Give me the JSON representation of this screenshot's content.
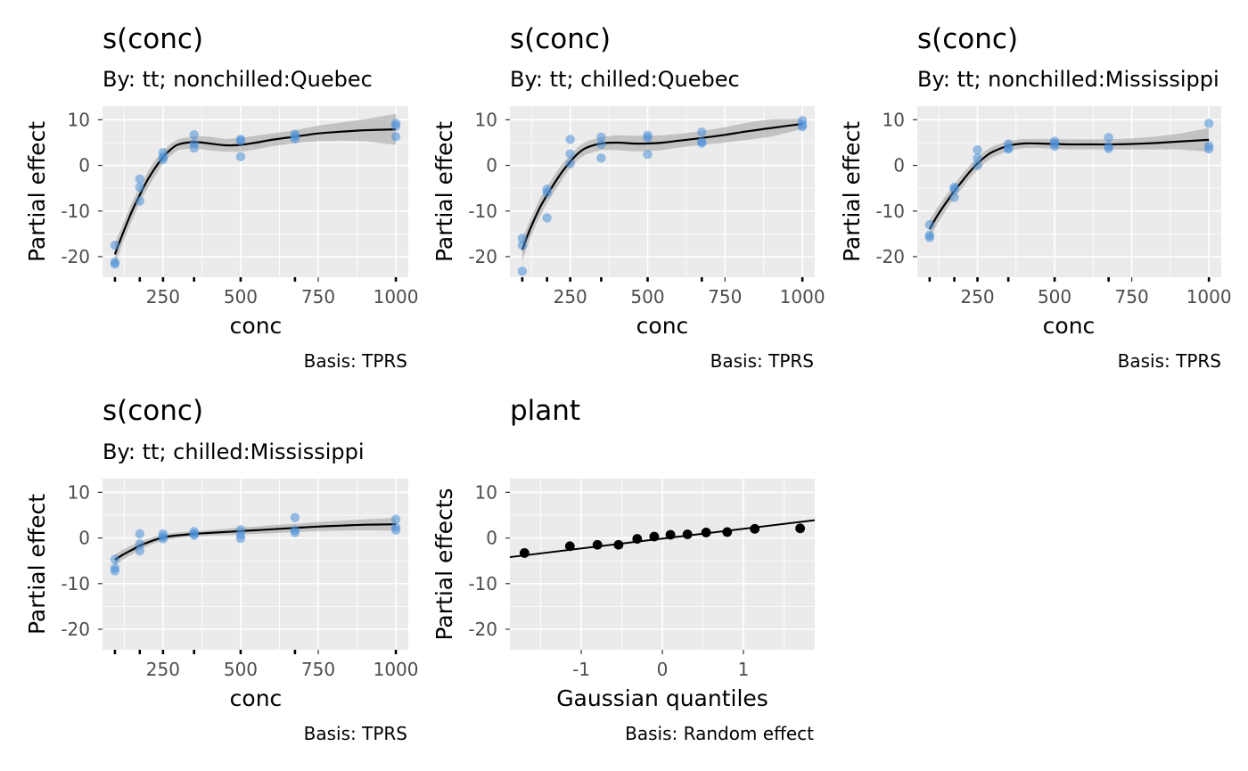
{
  "chart_data": [
    {
      "type": "line",
      "title": "s(conc)",
      "subtitle": "By: tt; nonchilled:Quebec",
      "caption": "Basis: TPRS",
      "xlabel": "conc",
      "ylabel": "Partial effect",
      "xlim": [
        55,
        1040
      ],
      "ylim": [
        -24.5,
        13
      ],
      "xticks": [
        250,
        500,
        750,
        1000
      ],
      "yticks": [
        -20,
        -10,
        0,
        10
      ],
      "rug": [
        95,
        175,
        250,
        350,
        500,
        675,
        1000
      ],
      "smooth": {
        "x": [
          95,
          120,
          150,
          175,
          200,
          225,
          250,
          275,
          300,
          350,
          400,
          450,
          500,
          550,
          600,
          675,
          750,
          825,
          900,
          1000
        ],
        "y": [
          -19.5,
          -15,
          -10,
          -6.5,
          -3.2,
          -0.5,
          1.8,
          3.5,
          4.6,
          5.1,
          4.8,
          4.4,
          4.5,
          5.0,
          5.6,
          6.3,
          7.0,
          7.4,
          7.7,
          7.9
        ],
        "lower": [
          -22,
          -17,
          -12,
          -8.2,
          -5,
          -2.3,
          0.5,
          2.2,
          3.4,
          3.8,
          3.3,
          3.0,
          3.0,
          3.5,
          4.2,
          4.9,
          5.3,
          5.4,
          5.3,
          4.5
        ],
        "upper": [
          -17,
          -13,
          -8,
          -4.8,
          -1.4,
          1.3,
          3.1,
          4.8,
          5.8,
          6.4,
          6.3,
          5.8,
          6.0,
          6.5,
          7.0,
          7.7,
          8.7,
          9.4,
          10.1,
          11.3
        ]
      },
      "points": {
        "x": [
          95,
          95,
          95,
          175,
          175,
          175,
          250,
          250,
          250,
          350,
          350,
          350,
          500,
          500,
          500,
          675,
          675,
          675,
          1000,
          1000,
          1000
        ],
        "y": [
          -17.5,
          -21.2,
          -21.6,
          -3.0,
          -4.8,
          -7.8,
          2.8,
          1.8,
          1.3,
          6.7,
          4.8,
          3.8,
          5.7,
          5.4,
          1.9,
          6.8,
          6.4,
          5.8,
          9.2,
          8.6,
          6.3
        ]
      }
    },
    {
      "type": "line",
      "title": "s(conc)",
      "subtitle": "By: tt; chilled:Quebec",
      "caption": "Basis: TPRS",
      "xlabel": "conc",
      "ylabel": "Partial effect",
      "xlim": [
        55,
        1040
      ],
      "ylim": [
        -24.5,
        13
      ],
      "xticks": [
        250,
        500,
        750,
        1000
      ],
      "yticks": [
        -20,
        -10,
        0,
        10
      ],
      "rug": [
        95,
        175,
        250,
        350,
        500,
        675,
        1000
      ],
      "smooth": {
        "x": [
          95,
          120,
          150,
          175,
          200,
          225,
          250,
          275,
          300,
          350,
          400,
          450,
          500,
          550,
          600,
          675,
          750,
          825,
          900,
          1000
        ],
        "y": [
          -18.5,
          -14,
          -9.5,
          -6.5,
          -3.8,
          -1.3,
          0.8,
          2.6,
          3.8,
          4.8,
          5.0,
          4.8,
          4.8,
          5.0,
          5.4,
          6.0,
          6.7,
          7.5,
          8.2,
          9.1
        ],
        "lower": [
          -21,
          -16,
          -11.5,
          -8.3,
          -5.6,
          -3,
          -0.6,
          1.2,
          2.4,
          3.4,
          3.4,
          3.1,
          3.1,
          3.4,
          3.9,
          4.5,
          5.0,
          5.6,
          6.3,
          8.0
        ],
        "upper": [
          -16,
          -12,
          -7.5,
          -4.7,
          -2,
          0.4,
          2.2,
          4.0,
          5.2,
          6.2,
          6.6,
          6.5,
          6.5,
          6.6,
          6.9,
          7.5,
          8.4,
          9.4,
          10.1,
          10.2
        ]
      },
      "points": {
        "x": [
          95,
          95,
          95,
          175,
          175,
          175,
          250,
          250,
          250,
          350,
          350,
          350,
          500,
          500,
          500,
          675,
          675,
          675,
          1000,
          1000,
          1000
        ],
        "y": [
          -16,
          -17.5,
          -23.2,
          -5.2,
          -6,
          -11.5,
          5.7,
          2.5,
          0.4,
          6.2,
          4.6,
          1.6,
          6.6,
          6.0,
          2.4,
          7.3,
          5.2,
          4.9,
          9.8,
          8.9,
          8.5
        ]
      }
    },
    {
      "type": "line",
      "title": "s(conc)",
      "subtitle": "By: tt; nonchilled:Mississippi",
      "caption": "Basis: TPRS",
      "xlabel": "conc",
      "ylabel": "Partial effect",
      "xlim": [
        55,
        1040
      ],
      "ylim": [
        -24.5,
        13
      ],
      "xticks": [
        250,
        500,
        750,
        1000
      ],
      "yticks": [
        -20,
        -10,
        0,
        10
      ],
      "rug": [
        95,
        175,
        250,
        350,
        500,
        675,
        1000
      ],
      "smooth": {
        "x": [
          95,
          120,
          150,
          175,
          200,
          225,
          250,
          275,
          300,
          350,
          400,
          450,
          500,
          550,
          600,
          675,
          750,
          825,
          900,
          1000
        ],
        "y": [
          -14,
          -11,
          -8,
          -5.6,
          -3.5,
          -1.4,
          0.4,
          1.9,
          3.0,
          4.3,
          4.8,
          4.8,
          4.7,
          4.6,
          4.6,
          4.6,
          4.7,
          4.9,
          5.2,
          5.6
        ],
        "lower": [
          -16,
          -12.8,
          -9.6,
          -7.1,
          -5,
          -2.8,
          -1,
          0.6,
          1.8,
          3.2,
          3.8,
          3.8,
          3.6,
          3.5,
          3.5,
          3.5,
          3.5,
          3.5,
          3.5,
          3.0
        ],
        "upper": [
          -12,
          -9.2,
          -6.4,
          -4.1,
          -2,
          0,
          1.8,
          3.2,
          4.2,
          5.4,
          5.8,
          5.8,
          5.8,
          5.7,
          5.7,
          5.7,
          5.9,
          6.3,
          6.9,
          8.2
        ]
      },
      "points": {
        "x": [
          95,
          95,
          95,
          175,
          175,
          175,
          250,
          250,
          250,
          350,
          350,
          350,
          500,
          500,
          500,
          675,
          675,
          675,
          1000,
          1000,
          1000
        ],
        "y": [
          -13,
          -15.3,
          -15.8,
          -4.8,
          -5.2,
          -7.0,
          3.4,
          1.6,
          0.0,
          4.7,
          3.8,
          3.6,
          5.3,
          4.8,
          4.2,
          6.1,
          4.1,
          3.7,
          9.2,
          4.3,
          3.6
        ]
      }
    },
    {
      "type": "line",
      "title": "s(conc)",
      "subtitle": "By: tt; chilled:Mississippi",
      "caption": "Basis: TPRS",
      "xlabel": "conc",
      "ylabel": "Partial effect",
      "xlim": [
        55,
        1040
      ],
      "ylim": [
        -24.5,
        13
      ],
      "xticks": [
        250,
        500,
        750,
        1000
      ],
      "yticks": [
        -20,
        -10,
        0,
        10
      ],
      "rug": [
        95,
        175,
        250,
        350,
        500,
        675,
        1000
      ],
      "smooth": {
        "x": [
          95,
          120,
          150,
          175,
          200,
          225,
          250,
          275,
          300,
          350,
          400,
          450,
          500,
          550,
          600,
          675,
          750,
          825,
          900,
          1000
        ],
        "y": [
          -4.8,
          -3.7,
          -2.6,
          -1.7,
          -1.0,
          -0.4,
          0.1,
          0.4,
          0.6,
          0.9,
          1.1,
          1.3,
          1.5,
          1.7,
          1.9,
          2.2,
          2.5,
          2.7,
          2.9,
          3.0
        ],
        "lower": [
          -6.0,
          -4.8,
          -3.6,
          -2.6,
          -1.8,
          -1.1,
          -0.6,
          -0.2,
          0.0,
          0.3,
          0.5,
          0.6,
          0.7,
          0.9,
          1.0,
          1.3,
          1.5,
          1.6,
          1.7,
          1.6
        ],
        "upper": [
          -3.6,
          -2.6,
          -1.6,
          -0.8,
          -0.2,
          0.3,
          0.8,
          1.0,
          1.2,
          1.5,
          1.7,
          2.0,
          2.3,
          2.5,
          2.8,
          3.1,
          3.5,
          3.8,
          4.1,
          4.4
        ]
      },
      "points": {
        "x": [
          95,
          95,
          95,
          175,
          175,
          175,
          250,
          250,
          250,
          350,
          350,
          350,
          500,
          500,
          500,
          675,
          675,
          675,
          1000,
          1000,
          1000
        ],
        "y": [
          -4.7,
          -6.6,
          -7.2,
          0.9,
          -1.3,
          -2.8,
          0.9,
          0.3,
          -0.2,
          1.4,
          0.9,
          0.6,
          1.8,
          0.7,
          -0.1,
          4.5,
          1.7,
          1.2,
          4.1,
          2.4,
          1.7
        ]
      }
    },
    {
      "type": "scatter",
      "title": "plant",
      "caption": "Basis: Random effect",
      "xlabel": "Gaussian quantiles",
      "ylabel": "Partial effects",
      "xlim": [
        -1.88,
        1.88
      ],
      "ylim": [
        -24.5,
        13
      ],
      "xticks": [
        -1,
        0,
        1
      ],
      "yticks": [
        -20,
        -10,
        0,
        10
      ],
      "line": {
        "x": [
          -1.88,
          1.88
        ],
        "y": [
          -4.2,
          3.9
        ]
      },
      "points": {
        "x": [
          -1.7,
          -1.14,
          -0.8,
          -0.54,
          -0.31,
          -0.1,
          0.1,
          0.31,
          0.54,
          0.8,
          1.14,
          1.7
        ],
        "y": [
          -3.3,
          -1.8,
          -1.5,
          -1.5,
          -0.2,
          0.3,
          0.7,
          0.8,
          1.2,
          1.3,
          2.0,
          2.1
        ]
      }
    }
  ],
  "colors": {
    "panel_background": "#ebebeb",
    "grid": "#ffffff",
    "points": "#4a90d9",
    "smooth_line": "#000000",
    "ribbon": "#a0a0a0",
    "rug": "#000000",
    "tick_labels": "#4d4d4d"
  }
}
